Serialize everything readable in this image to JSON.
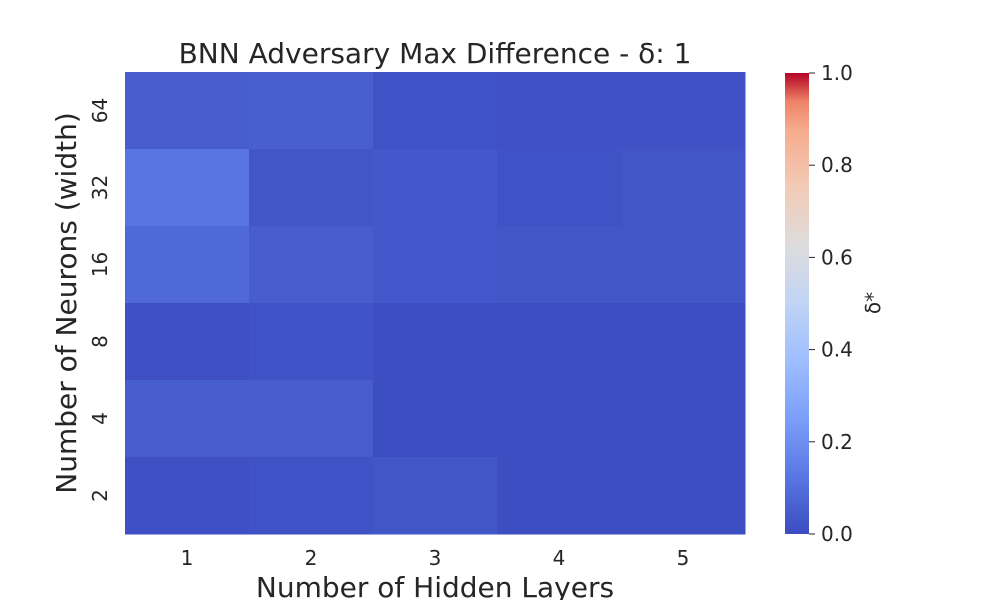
{
  "chart_data": {
    "type": "heatmap",
    "title": "BNN Adversary Max Difference - δ: 1",
    "xlabel": "Number of Hidden Layers",
    "ylabel": "Number of Neurons (width)",
    "x_categories": [
      "1",
      "2",
      "3",
      "4",
      "5"
    ],
    "y_categories_top_to_bottom": [
      "64",
      "32",
      "16",
      "8",
      "4",
      "2"
    ],
    "values": [
      [
        0.05,
        0.055,
        0.02,
        0.015,
        0.015
      ],
      [
        0.12,
        0.03,
        0.035,
        0.02,
        0.03
      ],
      [
        0.085,
        0.05,
        0.035,
        0.03,
        0.03
      ],
      [
        0.01,
        0.02,
        0.005,
        0.005,
        0.005
      ],
      [
        0.05,
        0.05,
        0.005,
        0.005,
        0.005
      ],
      [
        0.01,
        0.02,
        0.03,
        0.005,
        0.005
      ]
    ],
    "colorbar": {
      "label": "δ*",
      "range": [
        0.0,
        1.0
      ],
      "ticks": [
        "0.0",
        "0.2",
        "0.4",
        "0.6",
        "0.8",
        "1.0"
      ],
      "colormap": "coolwarm"
    }
  }
}
